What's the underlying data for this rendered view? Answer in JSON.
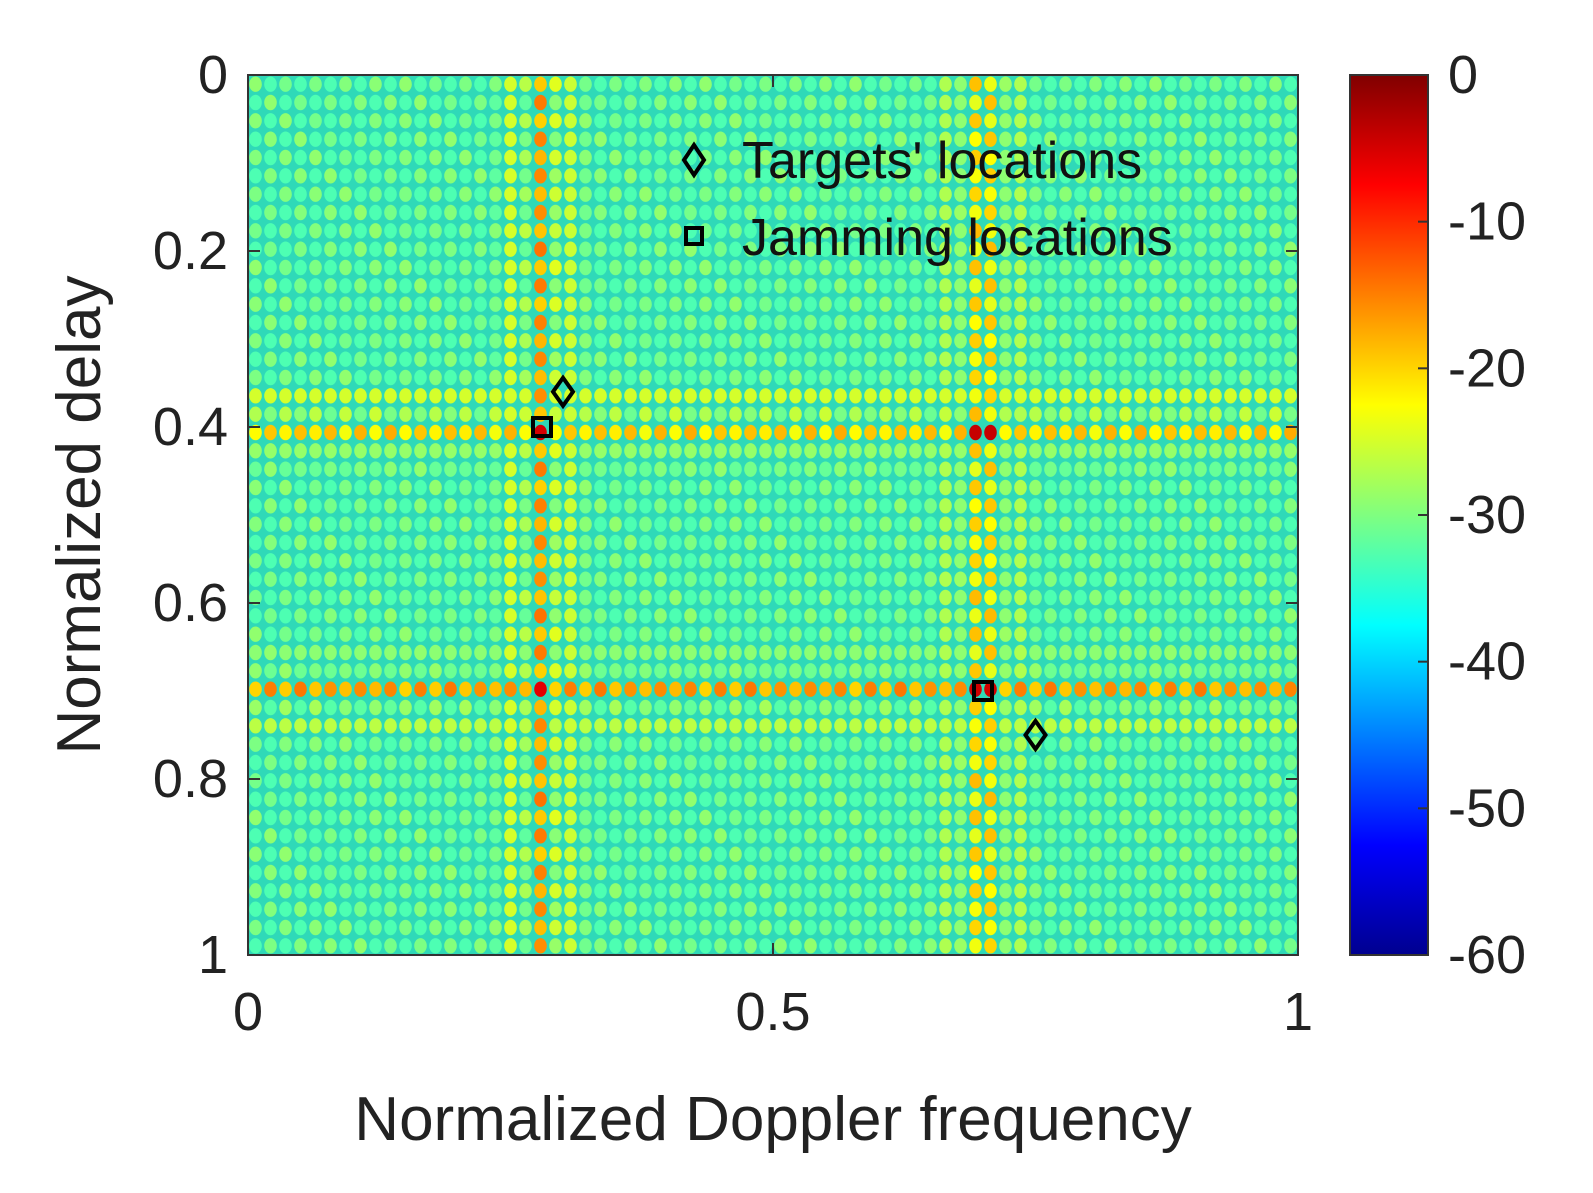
{
  "chart_data": {
    "type": "heatmap",
    "title": "",
    "xlabel": "Normalized Doppler frequency",
    "ylabel": "Normalized delay",
    "xlim": [
      0,
      1
    ],
    "ylim": [
      0,
      1
    ],
    "y_reversed": true,
    "x_ticks": [
      0,
      0.5,
      1
    ],
    "x_tick_labels": [
      "0",
      "0.5",
      "1"
    ],
    "y_ticks": [
      0,
      0.2,
      0.4,
      0.6,
      0.8,
      1
    ],
    "y_tick_labels": [
      "0",
      "0.2",
      "0.4",
      "0.6",
      "0.8",
      "1"
    ],
    "colorbar": {
      "range": [
        -60,
        0
      ],
      "ticks": [
        0,
        -10,
        -20,
        -30,
        -40,
        -50,
        -60
      ],
      "tick_labels": [
        "0",
        "-10",
        "-20",
        "-30",
        "-40",
        "-50",
        "-60"
      ],
      "colormap": "jet"
    },
    "background_level_db": -33,
    "ridges": {
      "doppler": [
        0.28,
        0.7
      ],
      "delay": [
        0.4,
        0.7
      ],
      "ridge_level_db": -18,
      "cross_peak_level_db": -6
    },
    "series": [
      {
        "name": "Targets' locations",
        "marker": "diamond",
        "points": [
          {
            "doppler": 0.3,
            "delay": 0.36
          },
          {
            "doppler": 0.75,
            "delay": 0.75
          }
        ]
      },
      {
        "name": "Jamming locations",
        "marker": "square",
        "points": [
          {
            "doppler": 0.28,
            "delay": 0.4
          },
          {
            "doppler": 0.7,
            "delay": 0.7
          }
        ]
      }
    ],
    "legend": {
      "position": "top-right",
      "entries": [
        "Targets' locations",
        "Jamming locations"
      ]
    }
  }
}
